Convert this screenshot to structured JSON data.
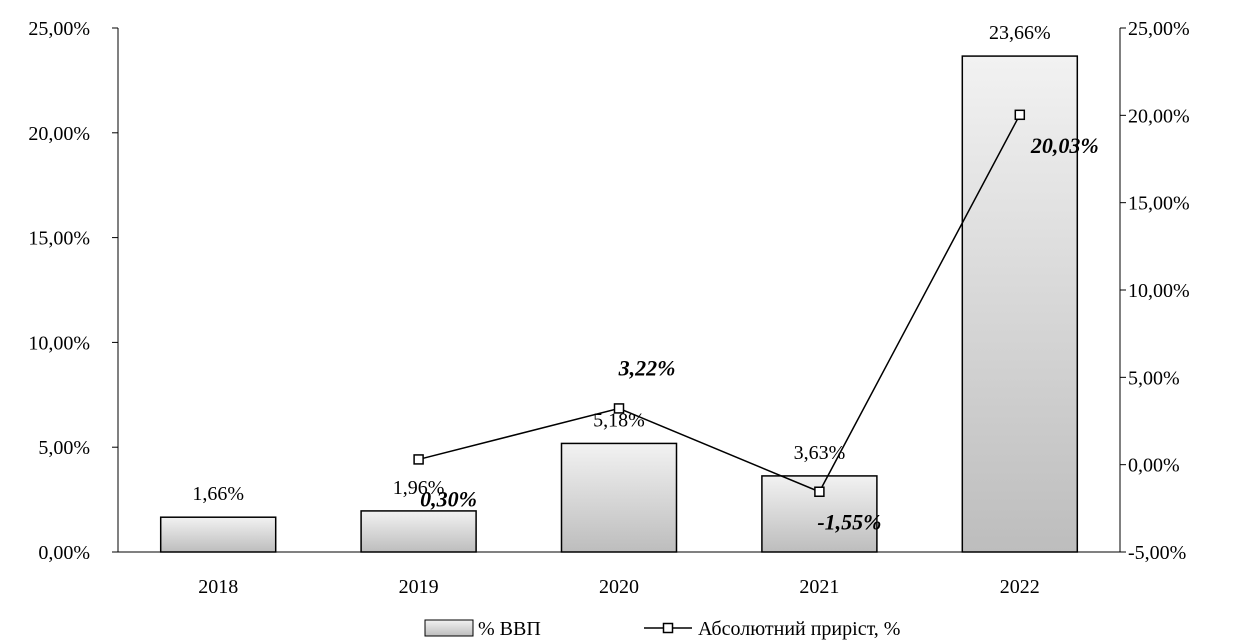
{
  "chart_data": {
    "type": "bar",
    "categories": [
      "2018",
      "2019",
      "2020",
      "2021",
      "2022"
    ],
    "series": [
      {
        "name": "% ВВП",
        "type": "bar",
        "axis": "left",
        "values": [
          1.66,
          1.96,
          5.18,
          3.63,
          23.66
        ],
        "labels": [
          "1,66%",
          "1,96%",
          "5,18%",
          "3,63%",
          "23,66%"
        ]
      },
      {
        "name": "Абсолютний приріст, %",
        "type": "line",
        "axis": "right",
        "values": [
          null,
          0.3,
          3.22,
          -1.55,
          20.03
        ],
        "labels": [
          "",
          "0,30%",
          "3,22%",
          "-1,55%",
          "20,03%"
        ]
      }
    ],
    "y_left": {
      "ylim": [
        0,
        25
      ],
      "ticks": [
        0,
        5,
        10,
        15,
        20,
        25
      ],
      "tick_labels": [
        "0,00%",
        "5,00%",
        "10,00%",
        "15,00%",
        "20,00%",
        "25,00%"
      ]
    },
    "y_right": {
      "ylim": [
        -5,
        25
      ],
      "ticks": [
        -5,
        0,
        5,
        10,
        15,
        20,
        25
      ],
      "tick_labels": [
        "-5,00%",
        "0,00%",
        "5,00%",
        "10,00%",
        "15,00%",
        "20,00%",
        "25,00%"
      ]
    },
    "grid": false,
    "legend_position": "bottom"
  }
}
